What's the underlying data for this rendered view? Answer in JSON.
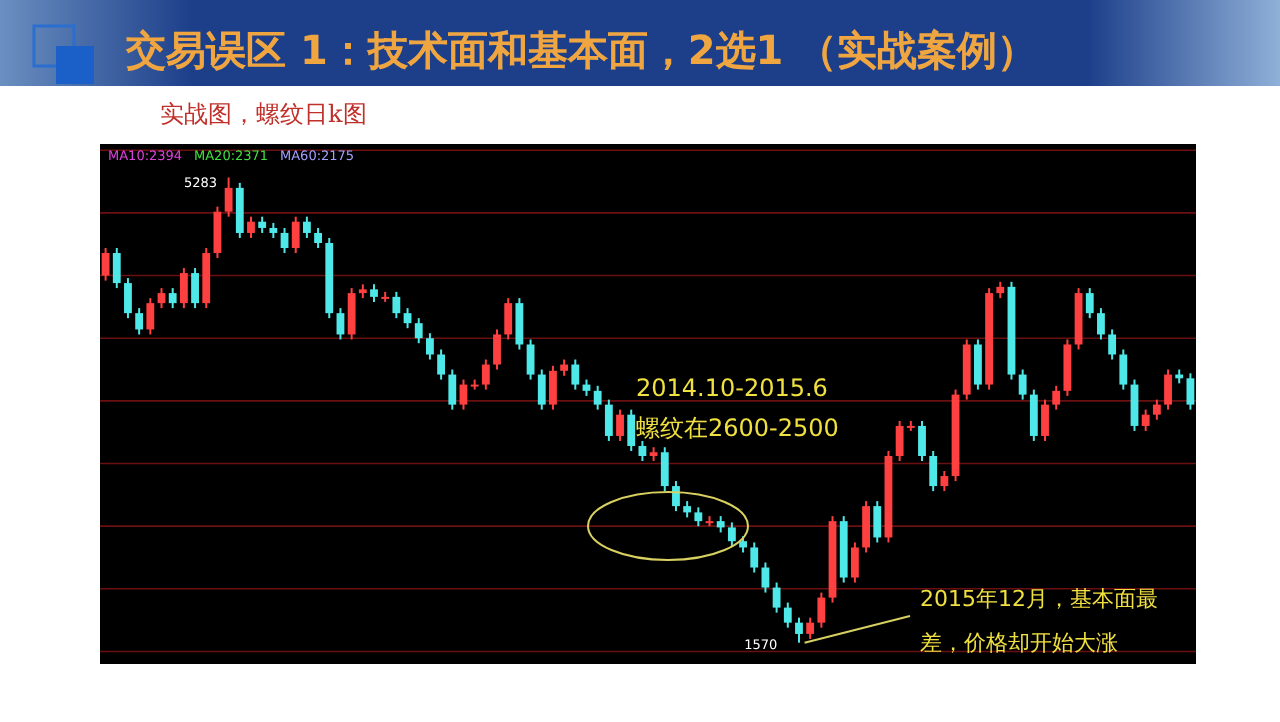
{
  "chart_data": {
    "type": "candlestick",
    "title": "交易误区 1：技术面和基本面，2选1 （实战案例）",
    "subtitle": "实战图，螺纹日k图",
    "categories": [
      null,
      null,
      null,
      null,
      null,
      null,
      null,
      null,
      null,
      null,
      null,
      null,
      null,
      null,
      null,
      null,
      null,
      null,
      null,
      null,
      null,
      null,
      null,
      null,
      null,
      null,
      null,
      null,
      null,
      null,
      null,
      null,
      null,
      null,
      null,
      null,
      null,
      null,
      null,
      null,
      null,
      null,
      null,
      null,
      null,
      null,
      null,
      null,
      null,
      null,
      null,
      null,
      null,
      null,
      null,
      null,
      null,
      null,
      null,
      null,
      null,
      null,
      null,
      null,
      null,
      null,
      null,
      null,
      null,
      null,
      null,
      null,
      null,
      null,
      null,
      null,
      null,
      null,
      null,
      null,
      null,
      null,
      null,
      null,
      null,
      null,
      null,
      null,
      null,
      null,
      null,
      null,
      null,
      null,
      null,
      null,
      null,
      null
    ],
    "ohlc": [
      [
        4500,
        4720,
        4460,
        4680
      ],
      [
        4680,
        4720,
        4400,
        4440
      ],
      [
        4440,
        4480,
        4160,
        4200
      ],
      [
        4200,
        4240,
        4030,
        4070
      ],
      [
        4070,
        4320,
        4030,
        4280
      ],
      [
        4280,
        4400,
        4240,
        4360
      ],
      [
        4360,
        4400,
        4240,
        4280
      ],
      [
        4280,
        4560,
        4240,
        4520
      ],
      [
        4520,
        4560,
        4240,
        4280
      ],
      [
        4280,
        4720,
        4240,
        4680
      ],
      [
        4680,
        5050,
        4640,
        5010
      ],
      [
        5010,
        5283,
        4970,
        5200
      ],
      [
        5200,
        5240,
        4800,
        4840
      ],
      [
        4840,
        4970,
        4800,
        4930
      ],
      [
        4930,
        4970,
        4840,
        4880
      ],
      [
        4880,
        4920,
        4800,
        4840
      ],
      [
        4840,
        4880,
        4680,
        4720
      ],
      [
        4720,
        4970,
        4680,
        4930
      ],
      [
        4930,
        4970,
        4800,
        4840
      ],
      [
        4840,
        4880,
        4720,
        4760
      ],
      [
        4760,
        4800,
        4160,
        4200
      ],
      [
        4200,
        4240,
        3990,
        4030
      ],
      [
        4030,
        4400,
        3990,
        4360
      ],
      [
        4360,
        4430,
        4320,
        4390
      ],
      [
        4390,
        4430,
        4290,
        4330
      ],
      [
        4330,
        4370,
        4290,
        4330
      ],
      [
        4330,
        4370,
        4160,
        4200
      ],
      [
        4200,
        4240,
        4080,
        4120
      ],
      [
        4120,
        4160,
        3960,
        4000
      ],
      [
        4000,
        4040,
        3830,
        3870
      ],
      [
        3870,
        3910,
        3670,
        3710
      ],
      [
        3710,
        3750,
        3430,
        3470
      ],
      [
        3470,
        3670,
        3430,
        3630
      ],
      [
        3630,
        3670,
        3590,
        3630
      ],
      [
        3630,
        3830,
        3590,
        3790
      ],
      [
        3790,
        4070,
        3750,
        4030
      ],
      [
        4030,
        4320,
        3990,
        4280
      ],
      [
        4280,
        4320,
        3910,
        3950
      ],
      [
        3950,
        3990,
        3670,
        3710
      ],
      [
        3710,
        3750,
        3430,
        3470
      ],
      [
        3470,
        3780,
        3430,
        3740
      ],
      [
        3740,
        3830,
        3700,
        3790
      ],
      [
        3790,
        3830,
        3590,
        3630
      ],
      [
        3630,
        3670,
        3540,
        3580
      ],
      [
        3580,
        3620,
        3430,
        3470
      ],
      [
        3470,
        3510,
        3180,
        3220
      ],
      [
        3220,
        3430,
        3180,
        3390
      ],
      [
        3390,
        3430,
        3100,
        3140
      ],
      [
        3140,
        3180,
        3020,
        3060
      ],
      [
        3060,
        3130,
        3020,
        3090
      ],
      [
        3090,
        3130,
        2780,
        2820
      ],
      [
        2820,
        2860,
        2620,
        2660
      ],
      [
        2660,
        2700,
        2570,
        2610
      ],
      [
        2610,
        2650,
        2500,
        2540
      ],
      [
        2540,
        2580,
        2500,
        2540
      ],
      [
        2540,
        2580,
        2450,
        2490
      ],
      [
        2490,
        2530,
        2340,
        2380
      ],
      [
        2380,
        2420,
        2290,
        2330
      ],
      [
        2330,
        2370,
        2130,
        2170
      ],
      [
        2170,
        2210,
        1970,
        2010
      ],
      [
        2010,
        2050,
        1810,
        1850
      ],
      [
        1850,
        1890,
        1690,
        1730
      ],
      [
        1730,
        1770,
        1570,
        1640
      ],
      [
        1640,
        1770,
        1600,
        1730
      ],
      [
        1730,
        1970,
        1690,
        1930
      ],
      [
        1930,
        2580,
        1890,
        2540
      ],
      [
        2540,
        2580,
        2050,
        2090
      ],
      [
        2090,
        2370,
        2050,
        2330
      ],
      [
        2330,
        2700,
        2290,
        2660
      ],
      [
        2660,
        2700,
        2370,
        2410
      ],
      [
        2410,
        3100,
        2370,
        3060
      ],
      [
        3060,
        3340,
        3020,
        3300
      ],
      [
        3300,
        3340,
        3260,
        3300
      ],
      [
        3300,
        3340,
        3020,
        3060
      ],
      [
        3060,
        3100,
        2780,
        2820
      ],
      [
        2820,
        2940,
        2780,
        2900
      ],
      [
        2900,
        3590,
        2860,
        3550
      ],
      [
        3550,
        3990,
        3510,
        3950
      ],
      [
        3950,
        3990,
        3590,
        3630
      ],
      [
        3630,
        4400,
        3590,
        4360
      ],
      [
        4360,
        4450,
        4320,
        4410
      ],
      [
        4410,
        4450,
        3670,
        3710
      ],
      [
        3710,
        3750,
        3510,
        3550
      ],
      [
        3550,
        3590,
        3180,
        3220
      ],
      [
        3220,
        3510,
        3180,
        3470
      ],
      [
        3470,
        3620,
        3430,
        3580
      ],
      [
        3580,
        3990,
        3540,
        3950
      ],
      [
        3950,
        4400,
        3910,
        4360
      ],
      [
        4360,
        4400,
        4160,
        4200
      ],
      [
        4200,
        4240,
        3990,
        4030
      ],
      [
        4030,
        4070,
        3830,
        3870
      ],
      [
        3870,
        3910,
        3590,
        3630
      ],
      [
        3630,
        3670,
        3260,
        3300
      ],
      [
        3300,
        3430,
        3260,
        3390
      ],
      [
        3390,
        3510,
        3350,
        3470
      ],
      [
        3470,
        3750,
        3430,
        3710
      ],
      [
        3710,
        3750,
        3640,
        3680
      ],
      [
        3680,
        3720,
        3430,
        3470
      ]
    ],
    "ylim": [
      1400,
      5550
    ],
    "yticks": [
      {
        "value": 1500,
        "label": null
      },
      {
        "value": 2000,
        "label": null
      },
      {
        "value": 2500,
        "label": null
      },
      {
        "value": 3000,
        "label": null
      },
      {
        "value": 3500,
        "label": null
      },
      {
        "value": 4000,
        "label": null
      },
      {
        "value": 4500,
        "label": null
      },
      {
        "value": 5000,
        "label": null
      },
      {
        "value": 5500,
        "label": null
      }
    ],
    "grid": "y",
    "annotations": [
      "MA10:2394",
      "MA20:2371",
      "MA60:2175",
      "5283",
      "1570",
      "2014.10-2015.6",
      "螺纹在2600-2500",
      "2015年12月，基本面最差，价格却开始大涨"
    ]
  }
}
